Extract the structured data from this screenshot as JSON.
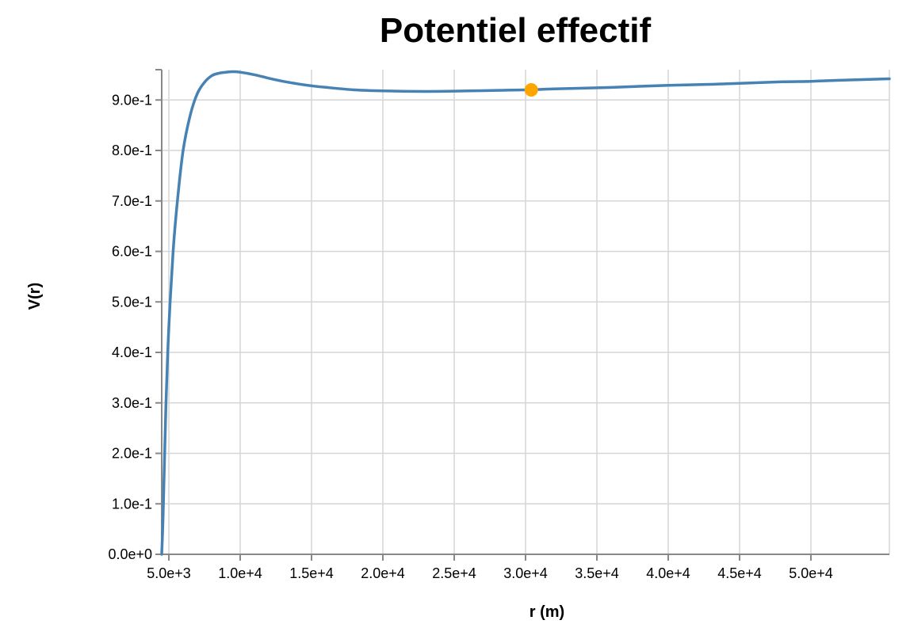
{
  "chart_data": {
    "type": "line",
    "title": "Potentiel effectif",
    "xlabel": "r (m)",
    "ylabel": "V(r)",
    "xlim": [
      4500,
      55500
    ],
    "ylim": [
      0,
      0.96
    ],
    "grid": true,
    "x_ticks": [
      {
        "value": 5000,
        "label": "5.0e+3"
      },
      {
        "value": 10000,
        "label": "1.0e+4"
      },
      {
        "value": 15000,
        "label": "1.5e+4"
      },
      {
        "value": 20000,
        "label": "2.0e+4"
      },
      {
        "value": 25000,
        "label": "2.5e+4"
      },
      {
        "value": 30000,
        "label": "3.0e+4"
      },
      {
        "value": 35000,
        "label": "3.5e+4"
      },
      {
        "value": 40000,
        "label": "4.0e+4"
      },
      {
        "value": 45000,
        "label": "4.5e+4"
      },
      {
        "value": 50000,
        "label": "5.0e+4"
      }
    ],
    "y_ticks": [
      {
        "value": 0.0,
        "label": "0.0e+0"
      },
      {
        "value": 0.1,
        "label": "1.0e-1"
      },
      {
        "value": 0.2,
        "label": "2.0e-1"
      },
      {
        "value": 0.3,
        "label": "3.0e-1"
      },
      {
        "value": 0.4,
        "label": "4.0e-1"
      },
      {
        "value": 0.5,
        "label": "5.0e-1"
      },
      {
        "value": 0.6,
        "label": "6.0e-1"
      },
      {
        "value": 0.7,
        "label": "7.0e-1"
      },
      {
        "value": 0.8,
        "label": "8.0e-1"
      },
      {
        "value": 0.9,
        "label": "9.0e-1"
      }
    ],
    "series": [
      {
        "color": "#4682b4",
        "points": [
          {
            "x": 4500,
            "y": 0.0
          },
          {
            "x": 4600,
            "y": 0.08
          },
          {
            "x": 4800,
            "y": 0.3
          },
          {
            "x": 5000,
            "y": 0.45
          },
          {
            "x": 5300,
            "y": 0.6
          },
          {
            "x": 5600,
            "y": 0.7
          },
          {
            "x": 6000,
            "y": 0.8
          },
          {
            "x": 6500,
            "y": 0.87
          },
          {
            "x": 7000,
            "y": 0.913
          },
          {
            "x": 7500,
            "y": 0.935
          },
          {
            "x": 8000,
            "y": 0.948
          },
          {
            "x": 8500,
            "y": 0.953
          },
          {
            "x": 9000,
            "y": 0.955
          },
          {
            "x": 9500,
            "y": 0.956
          },
          {
            "x": 10000,
            "y": 0.955
          },
          {
            "x": 11000,
            "y": 0.95
          },
          {
            "x": 12000,
            "y": 0.943
          },
          {
            "x": 13000,
            "y": 0.937
          },
          {
            "x": 14000,
            "y": 0.932
          },
          {
            "x": 15000,
            "y": 0.928
          },
          {
            "x": 16000,
            "y": 0.925
          },
          {
            "x": 18000,
            "y": 0.92
          },
          {
            "x": 20000,
            "y": 0.918
          },
          {
            "x": 22000,
            "y": 0.917
          },
          {
            "x": 24000,
            "y": 0.917
          },
          {
            "x": 26000,
            "y": 0.918
          },
          {
            "x": 28000,
            "y": 0.919
          },
          {
            "x": 30000,
            "y": 0.92
          },
          {
            "x": 32000,
            "y": 0.922
          },
          {
            "x": 35000,
            "y": 0.924
          },
          {
            "x": 38000,
            "y": 0.927
          },
          {
            "x": 40000,
            "y": 0.929
          },
          {
            "x": 43000,
            "y": 0.931
          },
          {
            "x": 45000,
            "y": 0.933
          },
          {
            "x": 48000,
            "y": 0.936
          },
          {
            "x": 50000,
            "y": 0.937
          },
          {
            "x": 52000,
            "y": 0.939
          },
          {
            "x": 55500,
            "y": 0.942
          }
        ]
      }
    ],
    "highlight_point": {
      "x": 30400,
      "y": 0.92,
      "color": "#ffa500"
    }
  }
}
